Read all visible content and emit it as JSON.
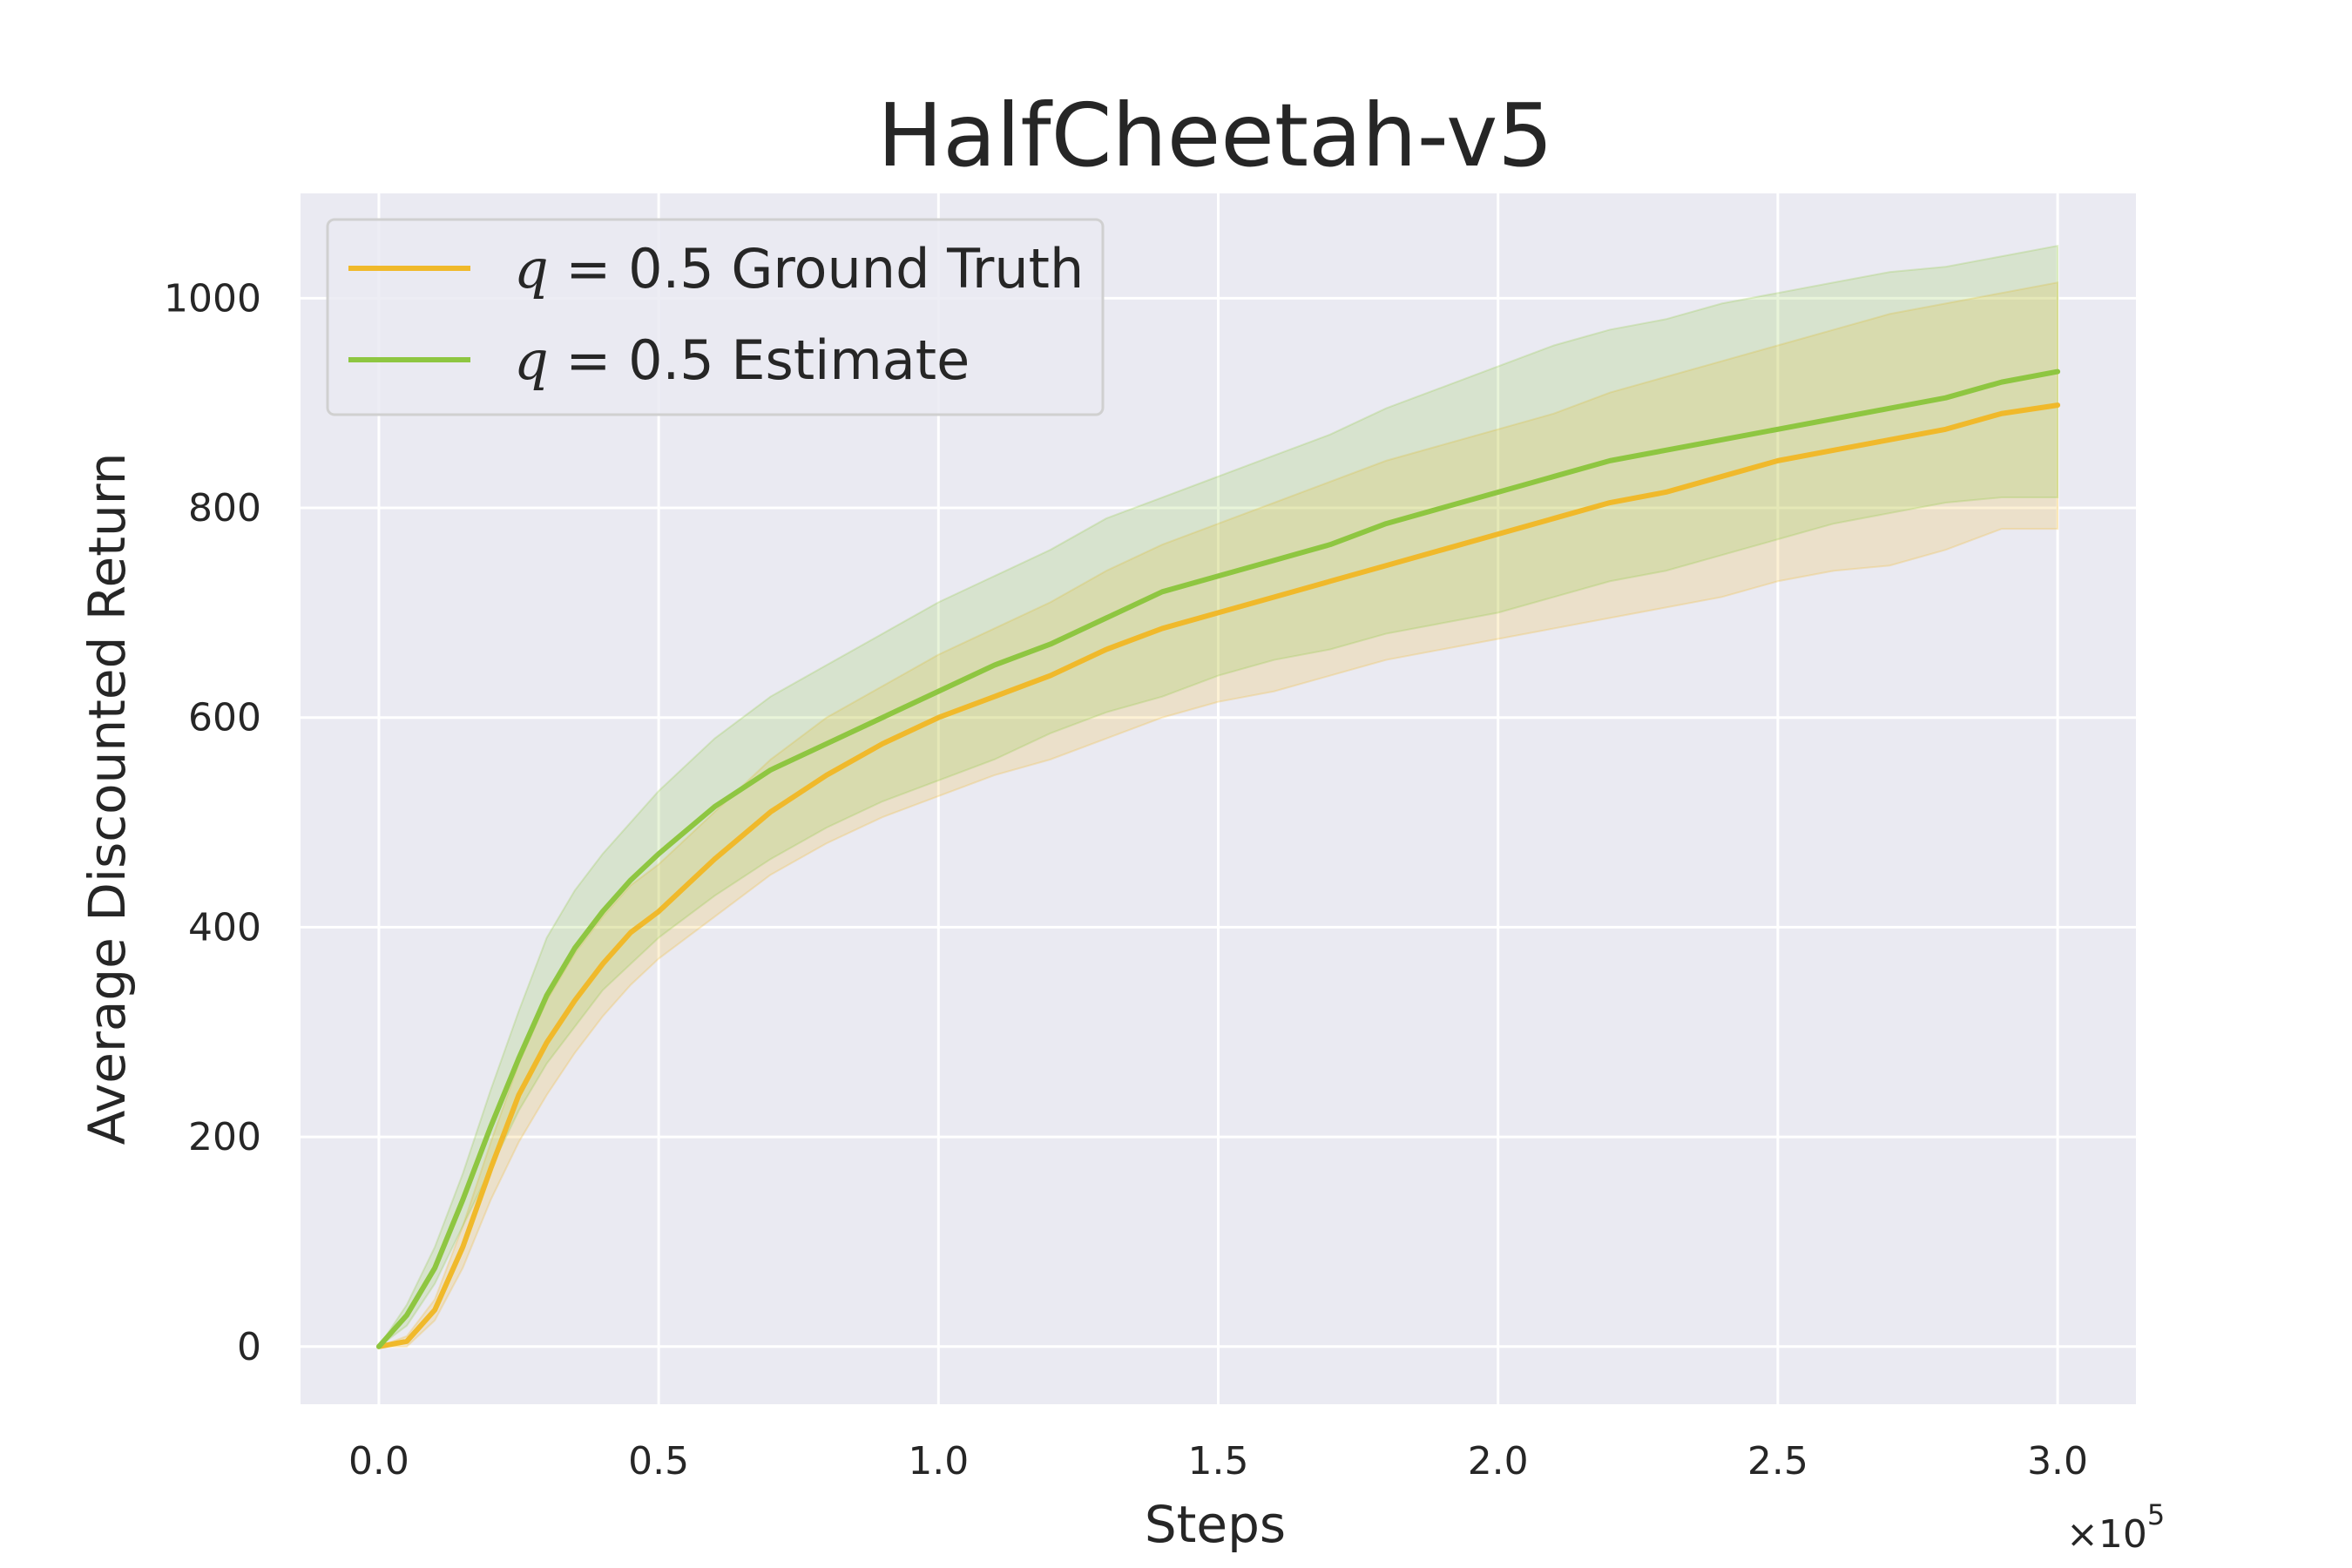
{
  "chart_data": {
    "type": "line",
    "title": "HalfCheetah-v5",
    "xlabel": "Steps",
    "ylabel": "Average Discounted Return",
    "x_multiplier_label": "×10",
    "x_multiplier_exponent": "5",
    "xlim": [
      -0.14,
      3.14
    ],
    "ylim": [
      -55,
      1100
    ],
    "xticks": [
      0.0,
      0.5,
      1.0,
      1.5,
      2.0,
      2.5,
      3.0
    ],
    "xtick_labels": [
      "0.0",
      "0.5",
      "1.0",
      "1.5",
      "2.0",
      "2.5",
      "3.0"
    ],
    "yticks": [
      0,
      200,
      400,
      600,
      800,
      1000
    ],
    "ytick_labels": [
      "0",
      "200",
      "400",
      "600",
      "800",
      "1000"
    ],
    "grid": true,
    "legend": {
      "location": "top-left"
    },
    "x": [
      0.0,
      0.05,
      0.1,
      0.15,
      0.2,
      0.25,
      0.3,
      0.35,
      0.4,
      0.45,
      0.5,
      0.6,
      0.7,
      0.8,
      0.9,
      1.0,
      1.1,
      1.2,
      1.3,
      1.4,
      1.5,
      1.6,
      1.7,
      1.8,
      1.9,
      2.0,
      2.1,
      2.2,
      2.3,
      2.4,
      2.5,
      2.6,
      2.7,
      2.8,
      2.9,
      3.0
    ],
    "series": [
      {
        "name": "Ground Truth",
        "legend_prefix": "q",
        "legend_value": " = 0.5 Ground Truth",
        "color": "#f0b92b",
        "values": [
          0,
          5,
          35,
          95,
          170,
          240,
          290,
          330,
          365,
          395,
          415,
          465,
          510,
          545,
          575,
          600,
          620,
          640,
          665,
          685,
          700,
          715,
          730,
          745,
          760,
          775,
          790,
          805,
          815,
          830,
          845,
          855,
          865,
          875,
          890,
          898
        ],
        "lower": [
          0,
          0,
          25,
          75,
          140,
          195,
          240,
          280,
          315,
          345,
          370,
          410,
          450,
          480,
          505,
          525,
          545,
          560,
          580,
          600,
          615,
          625,
          640,
          655,
          665,
          675,
          685,
          695,
          705,
          715,
          730,
          740,
          745,
          760,
          780,
          780
        ],
        "upper": [
          0,
          10,
          45,
          115,
          195,
          270,
          330,
          375,
          410,
          440,
          460,
          510,
          560,
          600,
          630,
          660,
          685,
          710,
          740,
          765,
          785,
          805,
          825,
          845,
          860,
          875,
          890,
          910,
          925,
          940,
          955,
          970,
          985,
          995,
          1005,
          1015
        ]
      },
      {
        "name": "Estimate",
        "legend_prefix": "q",
        "legend_value": " = 0.5 Estimate",
        "color": "#8ec641",
        "values": [
          0,
          30,
          75,
          140,
          210,
          275,
          335,
          380,
          415,
          445,
          470,
          515,
          550,
          575,
          600,
          625,
          650,
          670,
          695,
          720,
          735,
          750,
          765,
          785,
          800,
          815,
          830,
          845,
          855,
          865,
          875,
          885,
          895,
          905,
          920,
          930
        ],
        "lower": [
          0,
          20,
          60,
          115,
          170,
          225,
          270,
          305,
          340,
          365,
          390,
          430,
          465,
          495,
          520,
          540,
          560,
          585,
          605,
          620,
          640,
          655,
          665,
          680,
          690,
          700,
          715,
          730,
          740,
          755,
          770,
          785,
          795,
          805,
          810,
          810
        ],
        "upper": [
          0,
          40,
          95,
          165,
          245,
          320,
          390,
          435,
          470,
          500,
          530,
          580,
          620,
          650,
          680,
          710,
          735,
          760,
          790,
          810,
          830,
          850,
          870,
          895,
          915,
          935,
          955,
          970,
          980,
          995,
          1005,
          1015,
          1025,
          1030,
          1040,
          1050
        ]
      }
    ]
  }
}
